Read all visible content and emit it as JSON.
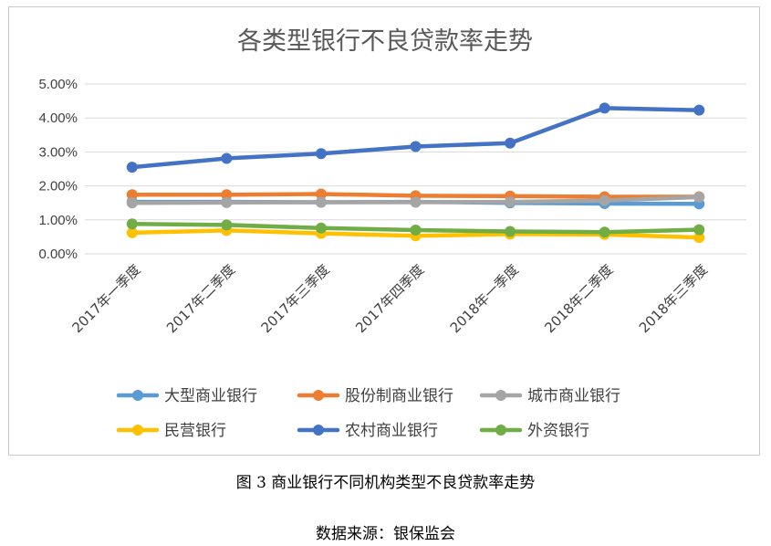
{
  "chart_data": {
    "type": "line",
    "title": "各类型银行不良贷款率走势",
    "categories": [
      "2017年一季度",
      "2017年二季度",
      "2017年三季度",
      "2017年四季度",
      "2018年一季度",
      "2018年二季度",
      "2018年三季度"
    ],
    "y_ticks": [
      "0.00%",
      "1.00%",
      "2.00%",
      "3.00%",
      "4.00%",
      "5.00%"
    ],
    "ylim": [
      0,
      5
    ],
    "y_unit": "%",
    "grid": true,
    "legend_position": "bottom",
    "series": [
      {
        "name": "大型商业银行",
        "color": "#5b9bd5",
        "values": [
          1.53,
          1.53,
          1.52,
          1.53,
          1.5,
          1.48,
          1.47
        ]
      },
      {
        "name": "股份制商业银行",
        "color": "#ed7d31",
        "values": [
          1.74,
          1.74,
          1.76,
          1.71,
          1.7,
          1.68,
          1.68
        ]
      },
      {
        "name": "城市商业银行",
        "color": "#a5a5a5",
        "values": [
          1.5,
          1.51,
          1.52,
          1.52,
          1.53,
          1.57,
          1.67
        ]
      },
      {
        "name": "民营银行",
        "color": "#ffc000",
        "values": [
          0.62,
          0.69,
          0.6,
          0.53,
          0.58,
          0.57,
          0.48
        ]
      },
      {
        "name": "农村商业银行",
        "color": "#4472c4",
        "values": [
          2.55,
          2.81,
          2.95,
          3.16,
          3.26,
          4.29,
          4.23
        ]
      },
      {
        "name": "外资银行",
        "color": "#70ad47",
        "values": [
          0.88,
          0.85,
          0.76,
          0.7,
          0.66,
          0.64,
          0.71
        ]
      }
    ]
  },
  "caption": "图 3  商业银行不同机构类型不良贷款率走势",
  "source": "数据来源：银保监会"
}
